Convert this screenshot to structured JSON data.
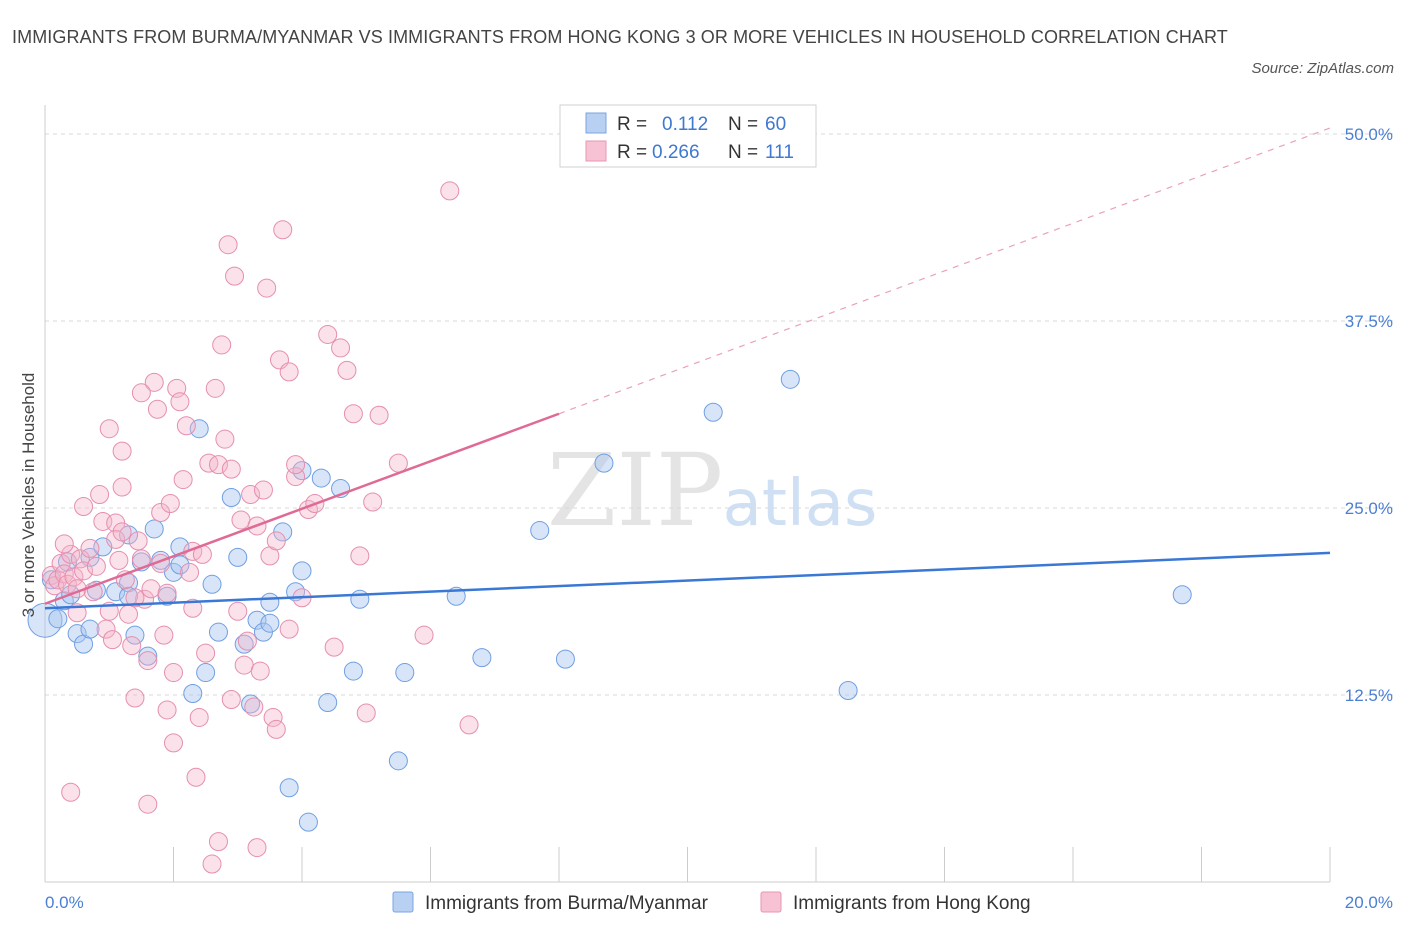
{
  "title": "IMMIGRANTS FROM BURMA/MYANMAR VS IMMIGRANTS FROM HONG KONG 3 OR MORE VEHICLES IN HOUSEHOLD CORRELATION CHART",
  "source": "Source: ZipAtlas.com",
  "watermark": {
    "zip": "ZIP",
    "atlas": "atlas"
  },
  "colors": {
    "blue": "#3a78d6",
    "blue_fill": "#a9c6f0",
    "pink": "#e06a96",
    "pink_fill": "#f5b3c8",
    "tick": "#4a7fd4",
    "grid": "#d8d8d8"
  },
  "chart_data": {
    "type": "scatter",
    "xlabel": "",
    "ylabel": "3 or more Vehicles in Household",
    "xlim": [
      0,
      20
    ],
    "ylim": [
      0,
      50
    ],
    "x_tick_labels": {
      "left": "0.0%",
      "right": "20.0%"
    },
    "y_tick_labels": [
      "12.5%",
      "25.0%",
      "37.5%",
      "50.0%"
    ],
    "y_ticks": [
      12.5,
      25,
      37.5,
      50
    ],
    "legend": {
      "rows": [
        {
          "r_label": "R =",
          "r_value": "0.112",
          "n_label": "N =",
          "n_value": "60"
        },
        {
          "r_label": "R =",
          "r_value": "0.266",
          "n_label": "N =",
          "n_value": "111"
        }
      ]
    },
    "series": [
      {
        "name": "Immigrants from Burma/Myanmar",
        "color": "#3a78d6",
        "trend": {
          "x0": 0,
          "y0": 18.3,
          "x1": 20,
          "y1": 22.0,
          "dashed_to": null
        },
        "points": [
          [
            0.0,
            17.5
          ],
          [
            0.1,
            20.2
          ],
          [
            0.2,
            17.6
          ],
          [
            0.3,
            18.8
          ],
          [
            0.35,
            21.4
          ],
          [
            0.4,
            19.2
          ],
          [
            0.5,
            16.6
          ],
          [
            0.6,
            15.9
          ],
          [
            0.7,
            21.7
          ],
          [
            0.7,
            16.9
          ],
          [
            0.8,
            19.5
          ],
          [
            1.1,
            19.4
          ],
          [
            1.3,
            20.0
          ],
          [
            1.3,
            19.1
          ],
          [
            1.5,
            21.4
          ],
          [
            1.4,
            16.5
          ],
          [
            1.6,
            15.1
          ],
          [
            1.8,
            21.5
          ],
          [
            2.0,
            20.7
          ],
          [
            2.1,
            21.2
          ],
          [
            2.3,
            12.6
          ],
          [
            2.4,
            30.3
          ],
          [
            2.5,
            14.0
          ],
          [
            2.6,
            19.9
          ],
          [
            2.7,
            16.7
          ],
          [
            2.9,
            25.7
          ],
          [
            3.0,
            21.7
          ],
          [
            3.1,
            15.9
          ],
          [
            3.2,
            11.9
          ],
          [
            3.3,
            17.5
          ],
          [
            3.4,
            16.7
          ],
          [
            3.5,
            17.3
          ],
          [
            3.5,
            18.7
          ],
          [
            3.7,
            23.4
          ],
          [
            3.8,
            6.3
          ],
          [
            3.9,
            19.4
          ],
          [
            4.0,
            27.5
          ],
          [
            4.1,
            4.0
          ],
          [
            4.3,
            27.0
          ],
          [
            4.4,
            12.0
          ],
          [
            4.6,
            26.3
          ],
          [
            4.8,
            14.1
          ],
          [
            4.9,
            18.9
          ],
          [
            5.5,
            8.1
          ],
          [
            5.6,
            14.0
          ],
          [
            6.4,
            19.1
          ],
          [
            6.8,
            15.0
          ],
          [
            7.7,
            23.5
          ],
          [
            8.1,
            14.9
          ],
          [
            8.7,
            28.0
          ],
          [
            10.4,
            31.4
          ],
          [
            11.6,
            33.6
          ],
          [
            12.5,
            12.8
          ],
          [
            17.7,
            19.2
          ],
          [
            1.7,
            23.6
          ],
          [
            2.1,
            22.4
          ],
          [
            1.3,
            23.2
          ],
          [
            0.9,
            22.4
          ],
          [
            1.9,
            19.1
          ],
          [
            4.0,
            20.8
          ]
        ]
      },
      {
        "name": "Immigrants from Hong Kong",
        "color": "#e06a96",
        "trend": {
          "x0": 0,
          "y0": 18.6,
          "x1": 8.0,
          "y1": 31.3,
          "dashed_to": {
            "x": 20.0,
            "y": 50.4
          }
        },
        "points": [
          [
            0.1,
            20.5
          ],
          [
            0.15,
            19.8
          ],
          [
            0.2,
            20.2
          ],
          [
            0.25,
            21.3
          ],
          [
            0.3,
            20.6
          ],
          [
            0.35,
            19.9
          ],
          [
            0.4,
            21.9
          ],
          [
            0.45,
            20.4
          ],
          [
            0.5,
            19.6
          ],
          [
            0.55,
            21.6
          ],
          [
            0.6,
            20.8
          ],
          [
            0.7,
            22.3
          ],
          [
            0.75,
            19.4
          ],
          [
            0.8,
            21.1
          ],
          [
            0.85,
            25.9
          ],
          [
            0.9,
            24.1
          ],
          [
            0.95,
            16.9
          ],
          [
            1.0,
            18.1
          ],
          [
            1.05,
            16.2
          ],
          [
            1.1,
            24.0
          ],
          [
            1.15,
            21.5
          ],
          [
            1.2,
            26.4
          ],
          [
            1.25,
            20.2
          ],
          [
            1.3,
            17.9
          ],
          [
            1.35,
            15.8
          ],
          [
            1.4,
            12.3
          ],
          [
            1.45,
            22.8
          ],
          [
            1.5,
            21.6
          ],
          [
            1.55,
            18.9
          ],
          [
            1.6,
            14.8
          ],
          [
            1.65,
            19.6
          ],
          [
            1.7,
            33.4
          ],
          [
            1.75,
            31.6
          ],
          [
            1.8,
            24.7
          ],
          [
            1.85,
            16.5
          ],
          [
            1.9,
            11.5
          ],
          [
            1.95,
            25.3
          ],
          [
            2.0,
            9.3
          ],
          [
            2.05,
            33.0
          ],
          [
            2.1,
            32.1
          ],
          [
            2.15,
            26.9
          ],
          [
            2.2,
            30.5
          ],
          [
            2.25,
            20.7
          ],
          [
            2.3,
            22.1
          ],
          [
            2.35,
            7.0
          ],
          [
            2.4,
            11.0
          ],
          [
            2.45,
            21.9
          ],
          [
            2.5,
            15.3
          ],
          [
            2.55,
            28.0
          ],
          [
            2.6,
            1.2
          ],
          [
            2.65,
            33.0
          ],
          [
            2.7,
            27.9
          ],
          [
            2.75,
            35.9
          ],
          [
            2.8,
            29.6
          ],
          [
            2.85,
            42.6
          ],
          [
            2.9,
            27.6
          ],
          [
            2.95,
            40.5
          ],
          [
            3.0,
            18.1
          ],
          [
            3.05,
            24.2
          ],
          [
            3.1,
            14.5
          ],
          [
            3.15,
            16.1
          ],
          [
            3.2,
            25.9
          ],
          [
            3.25,
            11.7
          ],
          [
            3.3,
            23.8
          ],
          [
            3.35,
            14.1
          ],
          [
            3.4,
            26.2
          ],
          [
            3.45,
            39.7
          ],
          [
            3.5,
            21.8
          ],
          [
            3.55,
            11.0
          ],
          [
            3.6,
            22.8
          ],
          [
            3.65,
            34.9
          ],
          [
            3.7,
            43.6
          ],
          [
            3.8,
            34.1
          ],
          [
            3.9,
            27.1
          ],
          [
            4.0,
            19.0
          ],
          [
            4.1,
            24.9
          ],
          [
            4.2,
            25.3
          ],
          [
            4.4,
            36.6
          ],
          [
            4.5,
            15.7
          ],
          [
            4.6,
            35.7
          ],
          [
            4.7,
            34.2
          ],
          [
            4.8,
            31.3
          ],
          [
            4.9,
            21.8
          ],
          [
            5.0,
            11.3
          ],
          [
            5.1,
            25.4
          ],
          [
            5.2,
            31.2
          ],
          [
            5.5,
            28.0
          ],
          [
            5.9,
            16.5
          ],
          [
            6.3,
            46.2
          ],
          [
            6.6,
            10.5
          ],
          [
            0.4,
            6.0
          ],
          [
            0.6,
            25.1
          ],
          [
            1.0,
            30.3
          ],
          [
            1.2,
            28.8
          ],
          [
            1.5,
            32.7
          ],
          [
            1.6,
            5.2
          ],
          [
            2.3,
            18.3
          ],
          [
            2.7,
            2.7
          ],
          [
            3.3,
            2.3
          ],
          [
            3.6,
            10.2
          ],
          [
            3.8,
            16.9
          ],
          [
            0.3,
            22.6
          ],
          [
            0.5,
            18.0
          ],
          [
            1.1,
            22.9
          ],
          [
            1.4,
            19.0
          ],
          [
            1.9,
            19.3
          ],
          [
            2.0,
            14.0
          ],
          [
            2.9,
            12.2
          ],
          [
            3.9,
            27.9
          ],
          [
            1.2,
            23.4
          ],
          [
            1.8,
            21.3
          ]
        ]
      }
    ]
  },
  "bottom_legend": {
    "items": [
      "Immigrants from Burma/Myanmar",
      "Immigrants from Hong Kong"
    ]
  }
}
